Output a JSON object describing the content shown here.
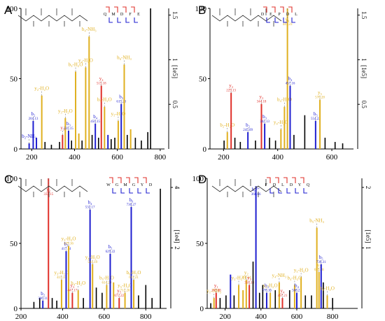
{
  "figure": {
    "colors": {
      "b": "#1f1fd0",
      "y": "#e0b020",
      "red": "#e0302a",
      "black": "#000000"
    }
  },
  "chart_data": [
    {
      "panel": "A",
      "type": "bar",
      "xlim": [
        150,
        820
      ],
      "xticks": [
        200,
        400,
        600,
        800
      ],
      "ylim": [
        0,
        100
      ],
      "yticks": [
        0,
        50,
        100
      ],
      "right_ticks": [
        "0.5",
        "1",
        "1.5"
      ],
      "right_label": "[1e5]",
      "sequence": [
        "Q",
        "M",
        "D",
        "F",
        "E"
      ],
      "peaks": [
        {
          "mz": 188,
          "int": 4,
          "c": "b",
          "label": "b₂-NH₃"
        },
        {
          "mz": 207,
          "int": 20,
          "c": "b",
          "label": "b₂",
          "mzlabel": "204.13"
        },
        {
          "mz": 222,
          "int": 8,
          "c": "b"
        },
        {
          "mz": 247,
          "int": 38,
          "c": "y",
          "label": "y₂-H₂O"
        },
        {
          "mz": 262,
          "int": 5,
          "c": "k"
        },
        {
          "mz": 292,
          "int": 3,
          "c": "k"
        },
        {
          "mz": 330,
          "int": 5,
          "c": "k"
        },
        {
          "mz": 344,
          "int": 10,
          "c": "r",
          "label": "y₃"
        },
        {
          "mz": 357,
          "int": 22,
          "c": "y",
          "label": "y₃-H₂O"
        },
        {
          "mz": 372,
          "int": 13,
          "c": "b",
          "label": "b₃",
          "mzlabel": "335.15"
        },
        {
          "mz": 386,
          "int": 6,
          "c": "k"
        },
        {
          "mz": 405,
          "int": 55,
          "c": "y",
          "label": "b₃-H₂O"
        },
        {
          "mz": 420,
          "int": 11,
          "c": "y"
        },
        {
          "mz": 435,
          "int": 6,
          "c": "k"
        },
        {
          "mz": 452,
          "int": 58,
          "c": "y",
          "label": "y₄-H₂O"
        },
        {
          "mz": 468,
          "int": 80,
          "c": "y",
          "label": "b₄-NH₃"
        },
        {
          "mz": 482,
          "int": 10,
          "c": "k"
        },
        {
          "mz": 497,
          "int": 18,
          "c": "b",
          "label": "b₄",
          "mzlabel": "450.15"
        },
        {
          "mz": 512,
          "int": 8,
          "c": "k"
        },
        {
          "mz": 525,
          "int": 45,
          "c": "r",
          "label": "y₄",
          "mzlabel": "515.18"
        },
        {
          "mz": 540,
          "int": 30,
          "c": "y",
          "label": "b₅-H₂O"
        },
        {
          "mz": 556,
          "int": 10,
          "c": "b"
        },
        {
          "mz": 571,
          "int": 7,
          "c": "k"
        },
        {
          "mz": 588,
          "int": 8,
          "c": "k"
        },
        {
          "mz": 604,
          "int": 20,
          "c": "y",
          "label": "y₅-H₂O"
        },
        {
          "mz": 618,
          "int": 32,
          "c": "b",
          "label": "b₅",
          "mzlabel": "615.23"
        },
        {
          "mz": 632,
          "int": 60,
          "c": "y",
          "label": "b₆-NH₃"
        },
        {
          "mz": 646,
          "int": 10,
          "c": "k"
        },
        {
          "mz": 662,
          "int": 14,
          "c": "y"
        },
        {
          "mz": 684,
          "int": 8,
          "c": "k"
        },
        {
          "mz": 712,
          "int": 6,
          "c": "k"
        },
        {
          "mz": 742,
          "int": 12,
          "c": "k"
        },
        {
          "mz": 755,
          "int": 100,
          "c": "k"
        }
      ]
    },
    {
      "panel": "B",
      "type": "bar",
      "xlim": [
        150,
        680
      ],
      "xticks": [
        200,
        400,
        600
      ],
      "ylim": [
        0,
        100
      ],
      "yticks": [
        0,
        50,
        100
      ],
      "right_ticks": [
        "0.5",
        "1",
        "1.5"
      ],
      "right_label": "[1e5]",
      "sequence": [
        "D",
        "E",
        "P",
        "D",
        "L"
      ],
      "peaks": [
        {
          "mz": 202,
          "int": 6,
          "c": "k"
        },
        {
          "mz": 214,
          "int": 12,
          "c": "y",
          "label": "b₂-H₂O"
        },
        {
          "mz": 228,
          "int": 40,
          "c": "r",
          "label": "y₂",
          "mzlabel": "229.13"
        },
        {
          "mz": 242,
          "int": 8,
          "c": "k"
        },
        {
          "mz": 262,
          "int": 5,
          "c": "k"
        },
        {
          "mz": 290,
          "int": 12,
          "c": "b",
          "label": "b₂",
          "mzlabel": "245.09"
        },
        {
          "mz": 318,
          "int": 6,
          "c": "k"
        },
        {
          "mz": 340,
          "int": 32,
          "c": "r",
          "label": "y₃",
          "mzlabel": "344.18"
        },
        {
          "mz": 352,
          "int": 18,
          "c": "b",
          "label": "b₃",
          "mzlabel": "342.13"
        },
        {
          "mz": 370,
          "int": 8,
          "c": "k"
        },
        {
          "mz": 392,
          "int": 6,
          "c": "k"
        },
        {
          "mz": 412,
          "int": 14,
          "c": "y",
          "label": "y₄-H₂O"
        },
        {
          "mz": 425,
          "int": 30,
          "c": "y",
          "label": "b₄-H₂O"
        },
        {
          "mz": 436,
          "int": 100,
          "c": "y",
          "label": "y₄",
          "mzlabel": "441.23"
        },
        {
          "mz": 446,
          "int": 45,
          "c": "b",
          "label": "b₄",
          "mzlabel": "457.16"
        },
        {
          "mz": 460,
          "int": 10,
          "c": "k"
        },
        {
          "mz": 500,
          "int": 24,
          "c": "k"
        },
        {
          "mz": 540,
          "int": 20,
          "c": "b",
          "label": "b₅",
          "mzlabel": "554.22"
        },
        {
          "mz": 556,
          "int": 35,
          "c": "y",
          "label": "y₅",
          "mzlabel": "570.28"
        },
        {
          "mz": 575,
          "int": 8,
          "c": "k"
        },
        {
          "mz": 612,
          "int": 5,
          "c": "k"
        },
        {
          "mz": 640,
          "int": 4,
          "c": "k"
        }
      ]
    },
    {
      "panel": "C",
      "type": "bar",
      "xlim": [
        200,
        900
      ],
      "xticks": [
        200,
        400,
        600,
        800
      ],
      "ylim": [
        0,
        100
      ],
      "yticks": [
        0,
        50,
        100
      ],
      "right_ticks": [
        "2",
        "4"
      ],
      "right_label": "[1e4]",
      "sequence": [
        "W",
        "G",
        "M",
        "G",
        "Y",
        "D"
      ],
      "peaks": [
        {
          "mz": 262,
          "int": 5,
          "c": "k"
        },
        {
          "mz": 290,
          "int": 8,
          "c": "k"
        },
        {
          "mz": 305,
          "int": 6,
          "c": "b",
          "label": "b₂",
          "mzlabel": "300.11"
        },
        {
          "mz": 332,
          "int": 100,
          "c": "r",
          "label": "y₂",
          "mzlabel": "332.15"
        },
        {
          "mz": 350,
          "int": 8,
          "c": "k"
        },
        {
          "mz": 372,
          "int": 6,
          "c": "k"
        },
        {
          "mz": 395,
          "int": 22,
          "c": "y",
          "label": "y₃-H₂O",
          "mzlabel": "415.15"
        },
        {
          "mz": 417,
          "int": 44,
          "c": "b",
          "label": "b₃",
          "mzlabel": "417.14"
        },
        {
          "mz": 429,
          "int": 48,
          "c": "y",
          "label": "y₃-H₂O",
          "mzlabel": "429.16"
        },
        {
          "mz": 447,
          "int": 12,
          "c": "r",
          "label": "y₃",
          "mzlabel": "447.17"
        },
        {
          "mz": 475,
          "int": 14,
          "c": "y",
          "label": "b₄-H₂O"
        },
        {
          "mz": 500,
          "int": 8,
          "c": "k"
        },
        {
          "mz": 532,
          "int": 76,
          "c": "b",
          "label": "b₄",
          "mzlabel": "532.17"
        },
        {
          "mz": 544,
          "int": 34,
          "c": "y",
          "label": "y₄-H₂O",
          "mzlabel": "544.19"
        },
        {
          "mz": 562,
          "int": 16,
          "c": "k"
        },
        {
          "mz": 590,
          "int": 12,
          "c": "k"
        },
        {
          "mz": 612,
          "int": 18,
          "c": "y",
          "label": "b₅-H₂O",
          "mzlabel": "614.20"
        },
        {
          "mz": 629,
          "int": 42,
          "c": "b",
          "label": "b₅",
          "mzlabel": "629.22"
        },
        {
          "mz": 645,
          "int": 20,
          "c": "y"
        },
        {
          "mz": 672,
          "int": 8,
          "c": "r",
          "label": "y₅",
          "mzlabel": "672.22"
        },
        {
          "mz": 700,
          "int": 12,
          "c": "y",
          "label": "y₅-H₂O",
          "mzlabel": "712.26"
        },
        {
          "mz": 730,
          "int": 78,
          "c": "b",
          "label": "b₆",
          "mzlabel": "730.27"
        },
        {
          "mz": 742,
          "int": 22,
          "c": "y",
          "label": "b₆-H₂O",
          "mzlabel": "611.21"
        },
        {
          "mz": 765,
          "int": 10,
          "c": "k"
        },
        {
          "mz": 800,
          "int": 18,
          "c": "k"
        },
        {
          "mz": 830,
          "int": 8,
          "c": "k"
        },
        {
          "mz": 870,
          "int": 92,
          "c": "k"
        }
      ]
    },
    {
      "panel": "D",
      "type": "bar",
      "xlim": [
        100,
        940
      ],
      "xticks": [
        200,
        400,
        600,
        800
      ],
      "ylim": [
        0,
        100
      ],
      "yticks": [
        0,
        50,
        100
      ],
      "right_ticks": [
        "1",
        "2"
      ],
      "right_label": "[1e5]",
      "sequence": [
        "F",
        "D",
        "L",
        "D",
        "Y",
        "Q"
      ],
      "peaks": [
        {
          "mz": 120,
          "int": 4,
          "c": "k"
        },
        {
          "mz": 138,
          "int": 8,
          "c": "y",
          "label": "y₁-NH₃"
        },
        {
          "mz": 150,
          "int": 12,
          "c": "r",
          "label": "y₁",
          "mzlabel": "147.08"
        },
        {
          "mz": 172,
          "int": 8,
          "c": "k"
        },
        {
          "mz": 205,
          "int": 10,
          "c": "k"
        },
        {
          "mz": 230,
          "int": 26,
          "c": "b"
        },
        {
          "mz": 250,
          "int": 10,
          "c": "k"
        },
        {
          "mz": 276,
          "int": 18,
          "c": "y",
          "label": "y₂-H₂O"
        },
        {
          "mz": 300,
          "int": 14,
          "c": "y"
        },
        {
          "mz": 318,
          "int": 22,
          "c": "y",
          "label": "y₂",
          "mzlabel": "310.14"
        },
        {
          "mz": 335,
          "int": 18,
          "c": "r",
          "label": "y₃",
          "mzlabel": "318.18"
        },
        {
          "mz": 356,
          "int": 36,
          "c": "k"
        },
        {
          "mz": 372,
          "int": 94,
          "c": "b",
          "label": "b₆²⁺",
          "mzlabel": "368.66"
        },
        {
          "mz": 392,
          "int": 12,
          "c": "k"
        },
        {
          "mz": 410,
          "int": 18,
          "c": "k"
        },
        {
          "mz": 432,
          "int": 12,
          "c": "b",
          "label": "b₃",
          "mzlabel": "378.16"
        },
        {
          "mz": 452,
          "int": 12,
          "c": "y",
          "label": "y₃-H₂O"
        },
        {
          "mz": 480,
          "int": 14,
          "c": "k"
        },
        {
          "mz": 502,
          "int": 20,
          "c": "y",
          "label": "y₄-NH₃"
        },
        {
          "mz": 520,
          "int": 8,
          "c": "r",
          "label": "y₄",
          "mzlabel": "497.21"
        },
        {
          "mz": 560,
          "int": 14,
          "c": "k"
        },
        {
          "mz": 588,
          "int": 18,
          "c": "y",
          "label": "b₄-H₂O"
        },
        {
          "mz": 600,
          "int": 12,
          "c": "b",
          "label": "b₄",
          "mzlabel": "508.21"
        },
        {
          "mz": 624,
          "int": 24,
          "c": "y",
          "label": "y₅-H₂O"
        },
        {
          "mz": 648,
          "int": 10,
          "c": "k"
        },
        {
          "mz": 682,
          "int": 10,
          "c": "k"
        },
        {
          "mz": 712,
          "int": 62,
          "c": "y",
          "label": "b₅-NH₃"
        },
        {
          "mz": 724,
          "int": 28,
          "c": "y",
          "label": "y₅",
          "mzlabel": "679.28"
        },
        {
          "mz": 736,
          "int": 34,
          "c": "b",
          "label": "b₅",
          "mzlabel": "736.31"
        },
        {
          "mz": 748,
          "int": 20,
          "c": "k"
        },
        {
          "mz": 770,
          "int": 10,
          "c": "y",
          "label": "b₆-H₂O"
        },
        {
          "mz": 800,
          "int": 8,
          "c": "k"
        }
      ]
    }
  ]
}
